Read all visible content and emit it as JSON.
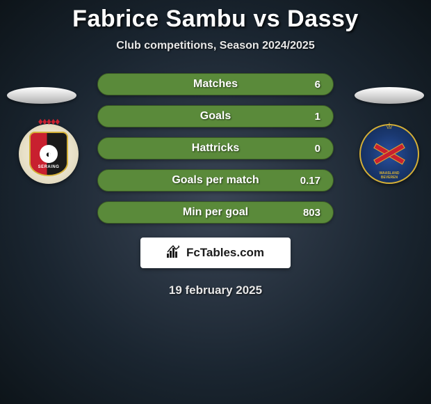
{
  "header": {
    "title": "Fabrice Sambu vs Dassy",
    "subtitle": "Club competitions, Season 2024/2025"
  },
  "stats": {
    "row_bg_color": "#5a8a3a",
    "row_border_color": "#3a5a24",
    "rows": [
      {
        "label": "Matches",
        "value_right": "6"
      },
      {
        "label": "Goals",
        "value_right": "1"
      },
      {
        "label": "Hattricks",
        "value_right": "0"
      },
      {
        "label": "Goals per match",
        "value_right": "0.17"
      },
      {
        "label": "Min per goal",
        "value_right": "803"
      }
    ]
  },
  "left_club": {
    "name": "SERAING",
    "shield_left_color": "#c8202f",
    "shield_right_color": "#1a1a1a",
    "crown_color": "#c8202f"
  },
  "right_club": {
    "name_line1": "WAASLAND",
    "name_line2": "BEVEREN",
    "ring_color": "#d4af37",
    "bg_color": "#1a3870",
    "cross_color": "#c8202f"
  },
  "branding": {
    "text": "FcTables.com"
  },
  "footer": {
    "date": "19 february 2025"
  },
  "colors": {
    "page_bg_outer": "#0d1419",
    "page_bg_inner": "#3a4555",
    "ellipse_fill": "#e0e0e0",
    "text_color": "#ffffff"
  }
}
